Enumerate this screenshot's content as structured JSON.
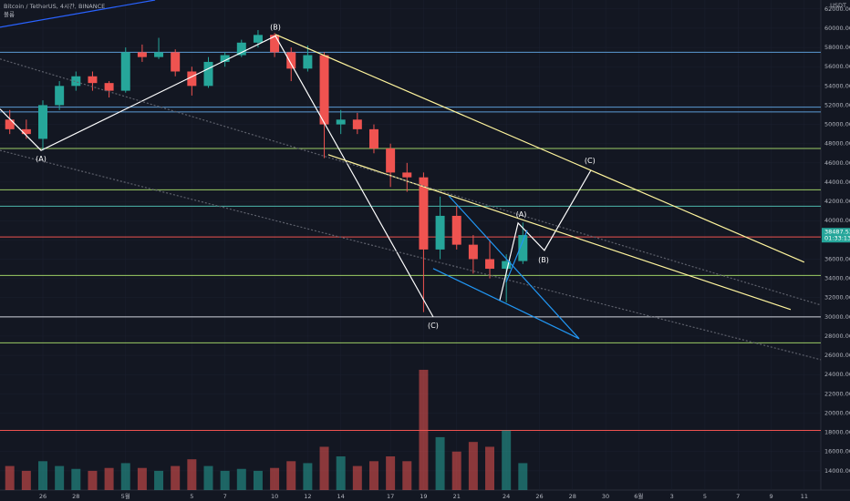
{
  "chart_data": {
    "type": "candlestick",
    "title": "Bitcoin / TetherUS, 4시간, BINANCE",
    "subtitle": "볼륨",
    "currency": "USDT",
    "last_price": 38487.53,
    "last_price_label": "38487.53",
    "countdown": "01:33:13",
    "up_color": "#26a69a",
    "down_color": "#ef5350",
    "xlim": [
      -2.59,
      47.0
    ],
    "ylim": [
      12000,
      62930
    ],
    "xticks": [
      {
        "value": 0,
        "label": "26"
      },
      {
        "value": 2,
        "label": "28"
      },
      {
        "value": 5,
        "label": "5월"
      },
      {
        "value": 9,
        "label": "5"
      },
      {
        "value": 11,
        "label": "7"
      },
      {
        "value": 14,
        "label": "10"
      },
      {
        "value": 16,
        "label": "12"
      },
      {
        "value": 18,
        "label": "14"
      },
      {
        "value": 21,
        "label": "17"
      },
      {
        "value": 23,
        "label": "19"
      },
      {
        "value": 25,
        "label": "21"
      },
      {
        "value": 28,
        "label": "24"
      },
      {
        "value": 30,
        "label": "26"
      },
      {
        "value": 32,
        "label": "28"
      },
      {
        "value": 34,
        "label": "30"
      },
      {
        "value": 36,
        "label": "6월"
      },
      {
        "value": 38,
        "label": "3"
      },
      {
        "value": 40,
        "label": "5"
      },
      {
        "value": 42,
        "label": "7"
      },
      {
        "value": 44,
        "label": "9"
      },
      {
        "value": 46,
        "label": "11"
      }
    ],
    "yticks": [
      {
        "value": 14000,
        "label": "14000.00"
      },
      {
        "value": 16000,
        "label": "16000.00"
      },
      {
        "value": 18000,
        "label": "18000.00"
      },
      {
        "value": 20000,
        "label": "20000.00"
      },
      {
        "value": 22000,
        "label": "22000.00"
      },
      {
        "value": 24000,
        "label": "24000.00"
      },
      {
        "value": 26000,
        "label": "26000.00"
      },
      {
        "value": 28000,
        "label": "28000.00"
      },
      {
        "value": 30000,
        "label": "30000.00"
      },
      {
        "value": 32000,
        "label": "32000.00"
      },
      {
        "value": 34000,
        "label": "34000.00"
      },
      {
        "value": 36000,
        "label": "36000.00"
      },
      {
        "value": 38000,
        "label": "38000.00"
      },
      {
        "value": 40000,
        "label": "40000.00"
      },
      {
        "value": 42000,
        "label": "42000.00"
      },
      {
        "value": 44000,
        "label": "44000.00"
      },
      {
        "value": 46000,
        "label": "46000.00"
      },
      {
        "value": 48000,
        "label": "48000.00"
      },
      {
        "value": 50000,
        "label": "50000.00"
      },
      {
        "value": 52000,
        "label": "52000.00"
      },
      {
        "value": 54000,
        "label": "54000.00"
      },
      {
        "value": 56000,
        "label": "56000.00"
      },
      {
        "value": 58000,
        "label": "58000.00"
      },
      {
        "value": 60000,
        "label": "60000.00"
      },
      {
        "value": 62000,
        "label": "62000.00"
      }
    ],
    "x": [
      -2,
      -1,
      0,
      1,
      2,
      3,
      4,
      5,
      6,
      7,
      8,
      9,
      10,
      11,
      12,
      13,
      14,
      15,
      16,
      17,
      18,
      19,
      20,
      21,
      22,
      23,
      24,
      25,
      26,
      27,
      28,
      29
    ],
    "open": [
      50500,
      49500,
      48500,
      52000,
      54000,
      55000,
      54300,
      53500,
      57500,
      57000,
      57500,
      55500,
      54000,
      56500,
      57200,
      58500,
      59300,
      57500,
      55800,
      57200,
      50000,
      50500,
      49500,
      47500,
      45000,
      44500,
      37000,
      40500,
      37500,
      36000,
      35000,
      35800
    ],
    "high": [
      51500,
      50500,
      52500,
      54500,
      55500,
      55500,
      54500,
      58000,
      58300,
      59000,
      57800,
      56000,
      57000,
      57500,
      58800,
      59800,
      59500,
      58000,
      58200,
      57500,
      51500,
      51200,
      50000,
      48000,
      46000,
      45000,
      42500,
      41500,
      38500,
      38000,
      36500,
      39800
    ],
    "low": [
      49000,
      48500,
      47300,
      51500,
      53500,
      53500,
      52800,
      53300,
      56500,
      56800,
      55000,
      53000,
      53800,
      56000,
      57000,
      58000,
      57000,
      54500,
      55500,
      46500,
      49000,
      49000,
      47000,
      43500,
      43000,
      30500,
      36000,
      37000,
      34500,
      34000,
      31500,
      35500
    ],
    "close": [
      49500,
      49000,
      52000,
      54000,
      55000,
      54300,
      53500,
      57500,
      57000,
      57500,
      55500,
      54000,
      56500,
      57200,
      58500,
      59300,
      57500,
      55800,
      57200,
      50000,
      50500,
      49500,
      47500,
      45000,
      44500,
      37000,
      40500,
      37500,
      36000,
      35000,
      35800,
      38500
    ],
    "volume": [
      14500,
      14000,
      15000,
      14500,
      14200,
      14000,
      14300,
      14800,
      14300,
      14000,
      14500,
      15200,
      14500,
      14000,
      14200,
      14000,
      14300,
      15000,
      14800,
      16500,
      15500,
      14500,
      15000,
      15500,
      15000,
      24500,
      17500,
      16000,
      17000,
      16500,
      18200,
      14800
    ],
    "levels": [
      {
        "value": 57500,
        "color": "#5b9bd5"
      },
      {
        "value": 51800,
        "color": "#5b9bd5"
      },
      {
        "value": 51300,
        "color": "#5b9bd5"
      },
      {
        "value": 47500,
        "color": "#9ccc65"
      },
      {
        "value": 43200,
        "color": "#9ccc65"
      },
      {
        "value": 41500,
        "color": "#4db6ac"
      },
      {
        "value": 38300,
        "color": "#ef5350"
      },
      {
        "value": 34300,
        "color": "#9ccc65"
      },
      {
        "value": 30000,
        "color": "#d1d4dc"
      },
      {
        "value": 27300,
        "color": "#9ccc65"
      },
      {
        "value": 18200,
        "color": "#ef5350"
      }
    ],
    "drawings": [
      {
        "color": "#2962ff",
        "dash": false,
        "x": [
          -2.59,
          6.78
        ],
        "y": [
          60100,
          62930
        ]
      },
      {
        "color": "#ffffff",
        "dash": false,
        "x": [
          -2.59,
          -0.11,
          14.05,
          23.58
        ],
        "y": [
          51600,
          47300,
          59200,
          30000
        ]
      },
      {
        "color": "#ffffff",
        "dash": false,
        "x": [
          27.6,
          28.71,
          30.3,
          33.11
        ],
        "y": [
          31700,
          39750,
          36910,
          45240
        ]
      },
      {
        "color": "#fff59d",
        "dash": false,
        "x": [
          14.05,
          46.0
        ],
        "y": [
          59350,
          35680
        ]
      },
      {
        "color": "#fff59d",
        "dash": false,
        "x": [
          17.24,
          45.18
        ],
        "y": [
          46850,
          30760
        ]
      },
      {
        "color": "#5d606b",
        "dash": true,
        "x": [
          -2.59,
          47.0
        ],
        "y": [
          47300,
          25550
        ]
      },
      {
        "color": "#5d606b",
        "dash": true,
        "x": [
          -2.59,
          47.0
        ],
        "y": [
          56800,
          31230
        ]
      },
      {
        "color": "#2196f3",
        "dash": false,
        "x": [
          24.52,
          32.4,
          23.58
        ],
        "y": [
          42590,
          27730,
          35020
        ]
      },
      {
        "color": "#2196f3",
        "dash": false,
        "x": [
          27.99,
          29.26
        ],
        "y": [
          33600,
          39000
        ]
      }
    ],
    "annotations": [
      {
        "text": "(A)",
        "x": -0.11,
        "y": 46400
      },
      {
        "text": "(B)",
        "x": 14.05,
        "y": 60100
      },
      {
        "text": "(C)",
        "x": 23.58,
        "y": 29100
      },
      {
        "text": "(A)",
        "x": 28.9,
        "y": 40650
      },
      {
        "text": "(B)",
        "x": 30.25,
        "y": 35900
      },
      {
        "text": "(C)",
        "x": 33.05,
        "y": 46200
      }
    ]
  }
}
